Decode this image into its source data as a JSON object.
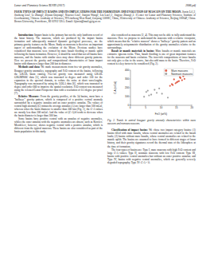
{
  "header": {
    "left": "Lunar and Planetary Science XLVIII (2017)",
    "right": "2086.pdf"
  },
  "title": "FOUR TYPES OF IMPACT BASINS AND ITS IMPLICATIONS FOR THE FORMATION AND EVOLUTION OF MASCON ON THE MOON.",
  "authors": "Jiaxin Li1,2, Jinzheng Liu2, Li Zhang2, Ziyuan Ouyang2, Xiaowei Liu2, Jianjun Wang2, Lin Luo1,2, Jingyao Zhang1,2. 1Center for Lunar and Planetary Sciences, Institute of Geochemistry, Chinese Academy of Sciences, 99 Lincheng West Road, Guiyang 550081, China, 2University of Chinese Academy of Sciences, Beijing 100049, China. Brown University, Providence, RI 02912 USA. Email: lijiaxin@mail.gyig.ac.cn",
  "left_column": [
    {
      "heading": "Introduction:",
      "text": "Impact basin is the primary but not the only landform record of the lunar history. The mascons, which are produced by the impact basins formation and subsequently mutated dynamic geological processes, are the primary gravity features on the Moon. Study on mascons is therefore an important aspect of understanding the evolution of the Moon. Previous studies have considered that mascons were formed by mare basalt flooding or mantle uplift following the basin formation. However, it should be noted that not all basins have mascons, and the basins with similar sizes may show different gravity patterns. Here we present the gravity and compositional characteristics of lunar impact basins with diameters larger than 200 km in diameter."
    },
    {
      "heading": "Methods and data:",
      "text": "We made measurements from free-air gravity anomalies, Bouguer gravity anomalies, topography and FeO content of the basins, following the GRAIL basin catalog. Free-air gravity was measured using GRAIL GRGM900C data [5], which was truncated to degree and order 320 for the expansion in the spectral domain, to reduce the noise at short wavelengths. Topography was measured by using the LOLA data [6], which was truncated to degree and order 660 to improve the spatial resolution. FeO content was measured using the released Lunar Prospector data with a resolution of 0.5 degree per pixel [7]."
    },
    {
      "heading": "Relative Measure:",
      "text": "From the gravity profiles, of the 34 basins, most have a \"bullseye\" gravity pattern, which is composed of a positive central anomaly surrounded by a negative annulus and an outer positive annulus. The values of central high anomaly (C) minus the average annulus (A) are larger than 100 mGal, whereas when the basin diameter is smaller than 300 km (Fig. 1), the C-A values are mostly less than 200 mGal. And the value of (C-A)/d tends to decrease when the basin diameter is larger than 300 km."
    },
    {
      "heading": "",
      "text": "Some basins have positive central with an annulus of negative anomalies, whiles the outer annulus with the negative anomalies are absent, such as Korolev. Mendeleev, however, shows negative central with a positive annulus, which is different from the typical mascons. These basins are also considered as part of the basin population in this study."
    }
  ],
  "right_column_before": [
    {
      "heading": "",
      "text": "also considered as mascons [2, 4]. This may not be able to fully understand the mascons. Here we propose to understand the mascons with a relative viewpoint, which means that the \"relative mascon\" shows a \"bullseye\" gravity pattern and an approximately axisymmetric distribution of the gravity anomalies relative to the surroundings."
    },
    {
      "heading": "Basalt or mantle materials in basins:",
      "text": "Mare basalts or mantle materials are extrusive igneous rocks. Thus, basalt flooding is one of great important features for the mascons and basin evolution. The iron-rich compositions of inner basalts not only give a clue to the source, but also add mass to the basin. Therefore, FeO content is a key factor to be considered (Fig. 2)."
    }
  ],
  "chart_data": {
    "type": "scatter",
    "x_label": "FeO (wt%)",
    "y_label": "C-A (mGal)",
    "xlim": [
      0,
      20
    ],
    "xticks": [
      0,
      5,
      10,
      15,
      20
    ],
    "ylim": [
      0,
      400
    ],
    "yticks": [
      0,
      100,
      200,
      300,
      400
    ],
    "grid": false,
    "legend": "upper right",
    "series": [
      {
        "name": "Mare mascons",
        "color": "#d9381e",
        "marker": "circle",
        "x": [
          14.2,
          15.1,
          16.3,
          13.5,
          17.2,
          15.8,
          12.9,
          16.8,
          14.7,
          18.1,
          13.8,
          17.6,
          15.4,
          16.1
        ],
        "values": [
          295,
          260,
          310,
          240,
          330,
          275,
          220,
          285,
          250,
          345,
          230,
          300,
          268,
          320
        ]
      },
      {
        "name": "Nonmare mascons",
        "color": "#8c8c8c",
        "marker": "circle",
        "x": [
          5.2,
          6.8,
          4.5,
          7.9,
          8.6,
          6.1,
          9.4,
          12.2,
          5.7,
          10.3
        ],
        "values": [
          150,
          120,
          95,
          175,
          140,
          110,
          190,
          85,
          165,
          130
        ]
      }
    ]
  },
  "figure_caption": "Fig. 2. Trends in central bouguer gravity anomaly characteristics within mare mascons and nonmare mascons.",
  "right_column_after": [
    {
      "heading": "Classification of impact basins:",
      "text": "We chose two impact category basins: (1) basins filled with mare basalts, whose central anomalies are related to the basalt loads; (2) basins without mare basalts, whose central anomalies are related to the mantle uplift. The basins are assumed to have formed in different stages of lunar history, and their gravity signatures record the thermal state of the lithosphere at the time of formation."
    },
    {
      "heading": "",
      "text": "The four types of basins are: Type I, mare mascons with high FeO content and large C-A values; Type II, nonmare mascons with low FeO content; Type III, basins with positive central anomalies but without an outer positive annulus; and Type IV, basins with negative central anomalies, which are generally severely degraded topography. Type IV: C-A < 0."
    }
  ]
}
